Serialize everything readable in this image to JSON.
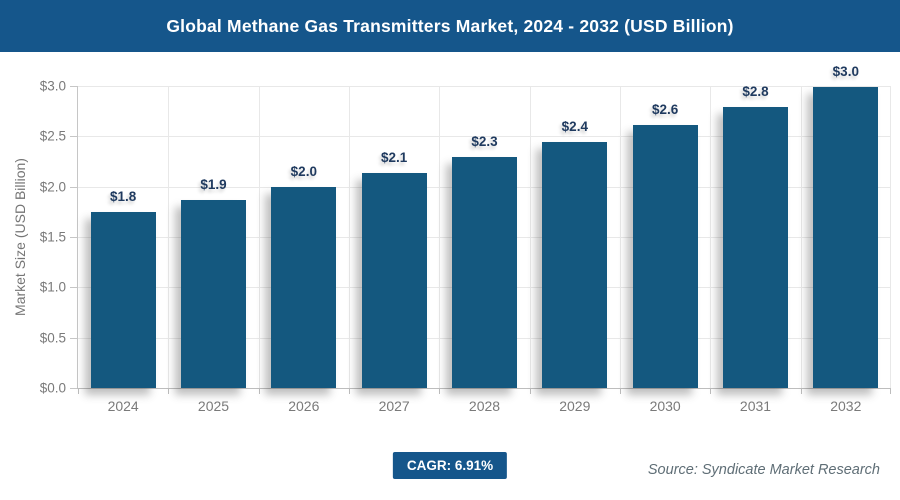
{
  "header": {
    "title": "Global Methane Gas Transmitters Market, 2024 - 2032 (USD Billion)"
  },
  "chart_data": {
    "type": "bar",
    "title": "Global Methane Gas Transmitters Market, 2024 - 2032 (USD Billion)",
    "categories": [
      "2024",
      "2025",
      "2026",
      "2027",
      "2028",
      "2029",
      "2030",
      "2031",
      "2032"
    ],
    "values": [
      1.75,
      1.87,
      2.0,
      2.14,
      2.29,
      2.44,
      2.61,
      2.79,
      2.99
    ],
    "bar_labels": [
      "$1.8",
      "$1.9",
      "$2.0",
      "$2.1",
      "$2.3",
      "$2.4",
      "$2.6",
      "$2.8",
      "$3.0"
    ],
    "xlabel": "",
    "ylabel": "Market Size (USD Billion)",
    "ylim": [
      0,
      3.0
    ],
    "ytick_step": 0.5,
    "ytick_labels": [
      "$0.0",
      "$0.5",
      "$1.0",
      "$1.5",
      "$2.0",
      "$2.5",
      "$3.0"
    ],
    "grid": true,
    "legend": "none"
  },
  "footer": {
    "cagr_label": "CAGR: 6.91%",
    "source": "Source: Syndicate Market Research"
  },
  "colors": {
    "header_bg": "#15568b",
    "bar": "#14587f",
    "value_label": "#1f3a5f",
    "axis_text": "#7a7a7a",
    "axis_title_text": "#757575",
    "grid_line": "#e8e8e8",
    "axis_line": "#c6c6c6",
    "badge_bg": "#15568b",
    "source_text": "#5f6e76"
  }
}
